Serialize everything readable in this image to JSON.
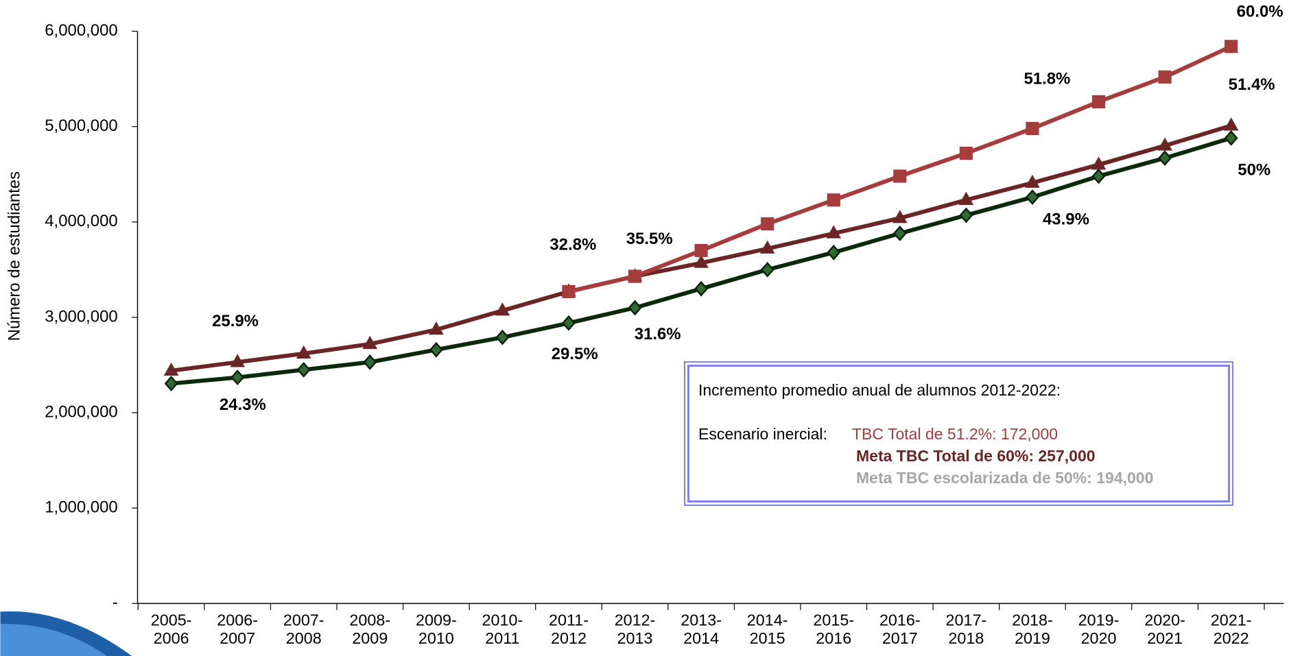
{
  "chart_data": {
    "type": "line",
    "y_label": "Número de estudiantes",
    "categories": [
      "2005- 2006",
      "2006- 2007",
      "2007- 2008",
      "2008- 2009",
      "2009- 2010",
      "2010- 2011",
      "2011- 2012",
      "2012- 2013",
      "2013- 2014",
      "2014- 2015",
      "2015- 2016",
      "2016- 2017",
      "2017- 2018",
      "2018- 2019",
      "2019- 2020",
      "2020- 2021",
      "2021- 2022"
    ],
    "ylim": [
      0,
      6000000
    ],
    "yticks": [
      {
        "value": 0,
        "label": "-"
      },
      {
        "value": 1000000,
        "label": "1,000,000"
      },
      {
        "value": 2000000,
        "label": "2,000,000"
      },
      {
        "value": 3000000,
        "label": "3,000,000"
      },
      {
        "value": 4000000,
        "label": "4,000,000"
      },
      {
        "value": 5000000,
        "label": "5,000,000"
      },
      {
        "value": 6000000,
        "label": "6,000,000"
      }
    ],
    "series": [
      {
        "color": "#0b2a0b",
        "marker": "diamond",
        "marker_color": "#2f6a34",
        "values": [
          2306000,
          2370000,
          2450000,
          2530000,
          2660000,
          2790000,
          2940000,
          3100000,
          3300000,
          3500000,
          3680000,
          3880000,
          4070000,
          4260000,
          4480000,
          4670000,
          4880000
        ]
      },
      {
        "color": "#6b2525",
        "marker": "triangle",
        "marker_color": "#6b2525",
        "values": [
          2440000,
          2530000,
          2620000,
          2720000,
          2870000,
          3070000,
          3270000,
          3430000,
          3570000,
          3720000,
          3880000,
          4040000,
          4230000,
          4410000,
          4600000,
          4800000,
          5010000
        ]
      },
      {
        "color": "#a63d3d",
        "marker": "square",
        "marker_color": "#a63d3d",
        "values": [
          null,
          null,
          null,
          null,
          null,
          null,
          3270000,
          3430000,
          3700000,
          3980000,
          4230000,
          4480000,
          4720000,
          4980000,
          5260000,
          5520000,
          5840000
        ]
      }
    ],
    "annotations": [
      "25.9%",
      "24.3%",
      "32.8%",
      "29.5%",
      "35.5%",
      "31.6%",
      "51.8%",
      "43.9%",
      "60.0%",
      "51.4%",
      "50%"
    ],
    "note_box": {
      "title": "Incremento  promedio anual  de alumnos  2012-2022:",
      "scenario": "Escenario inercial:",
      "line1": "TBC Total de 51.2%: 172,000",
      "line2": "Meta TBC Total de 60%:  257,000",
      "line3": "Meta TBC escolarizada de 50%:  194,000"
    }
  }
}
